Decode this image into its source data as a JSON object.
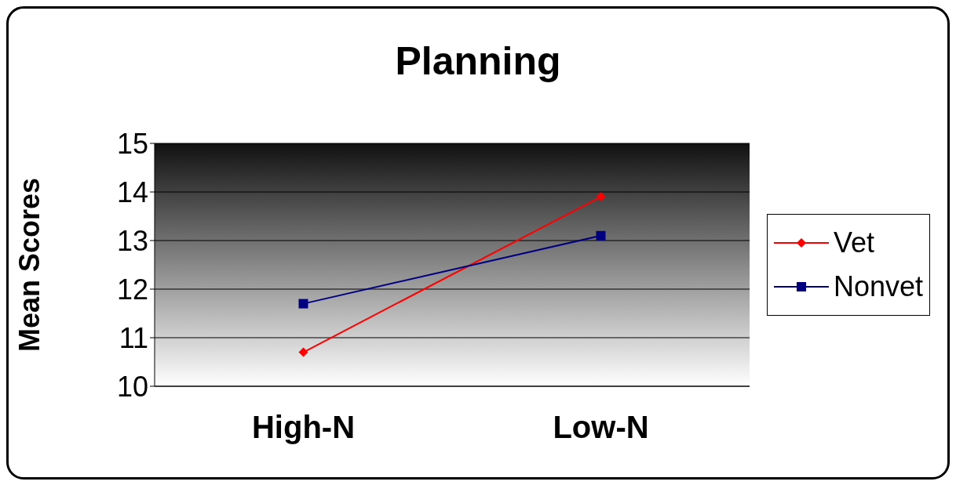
{
  "chart_data": {
    "type": "line",
    "title": "Planning",
    "ylabel": "Mean Scores",
    "categories": [
      "High-N",
      "Low-N"
    ],
    "series": [
      {
        "name": "Vet",
        "color": "#ff0000",
        "marker": "diamond",
        "values": [
          10.7,
          13.9
        ]
      },
      {
        "name": "Nonvet",
        "color": "#000080",
        "marker": "square",
        "values": [
          11.7,
          13.1
        ]
      }
    ],
    "ylim": [
      10,
      15
    ],
    "yticks": [
      10,
      11,
      12,
      13,
      14,
      15
    ],
    "grid": "y",
    "legend": "right"
  }
}
